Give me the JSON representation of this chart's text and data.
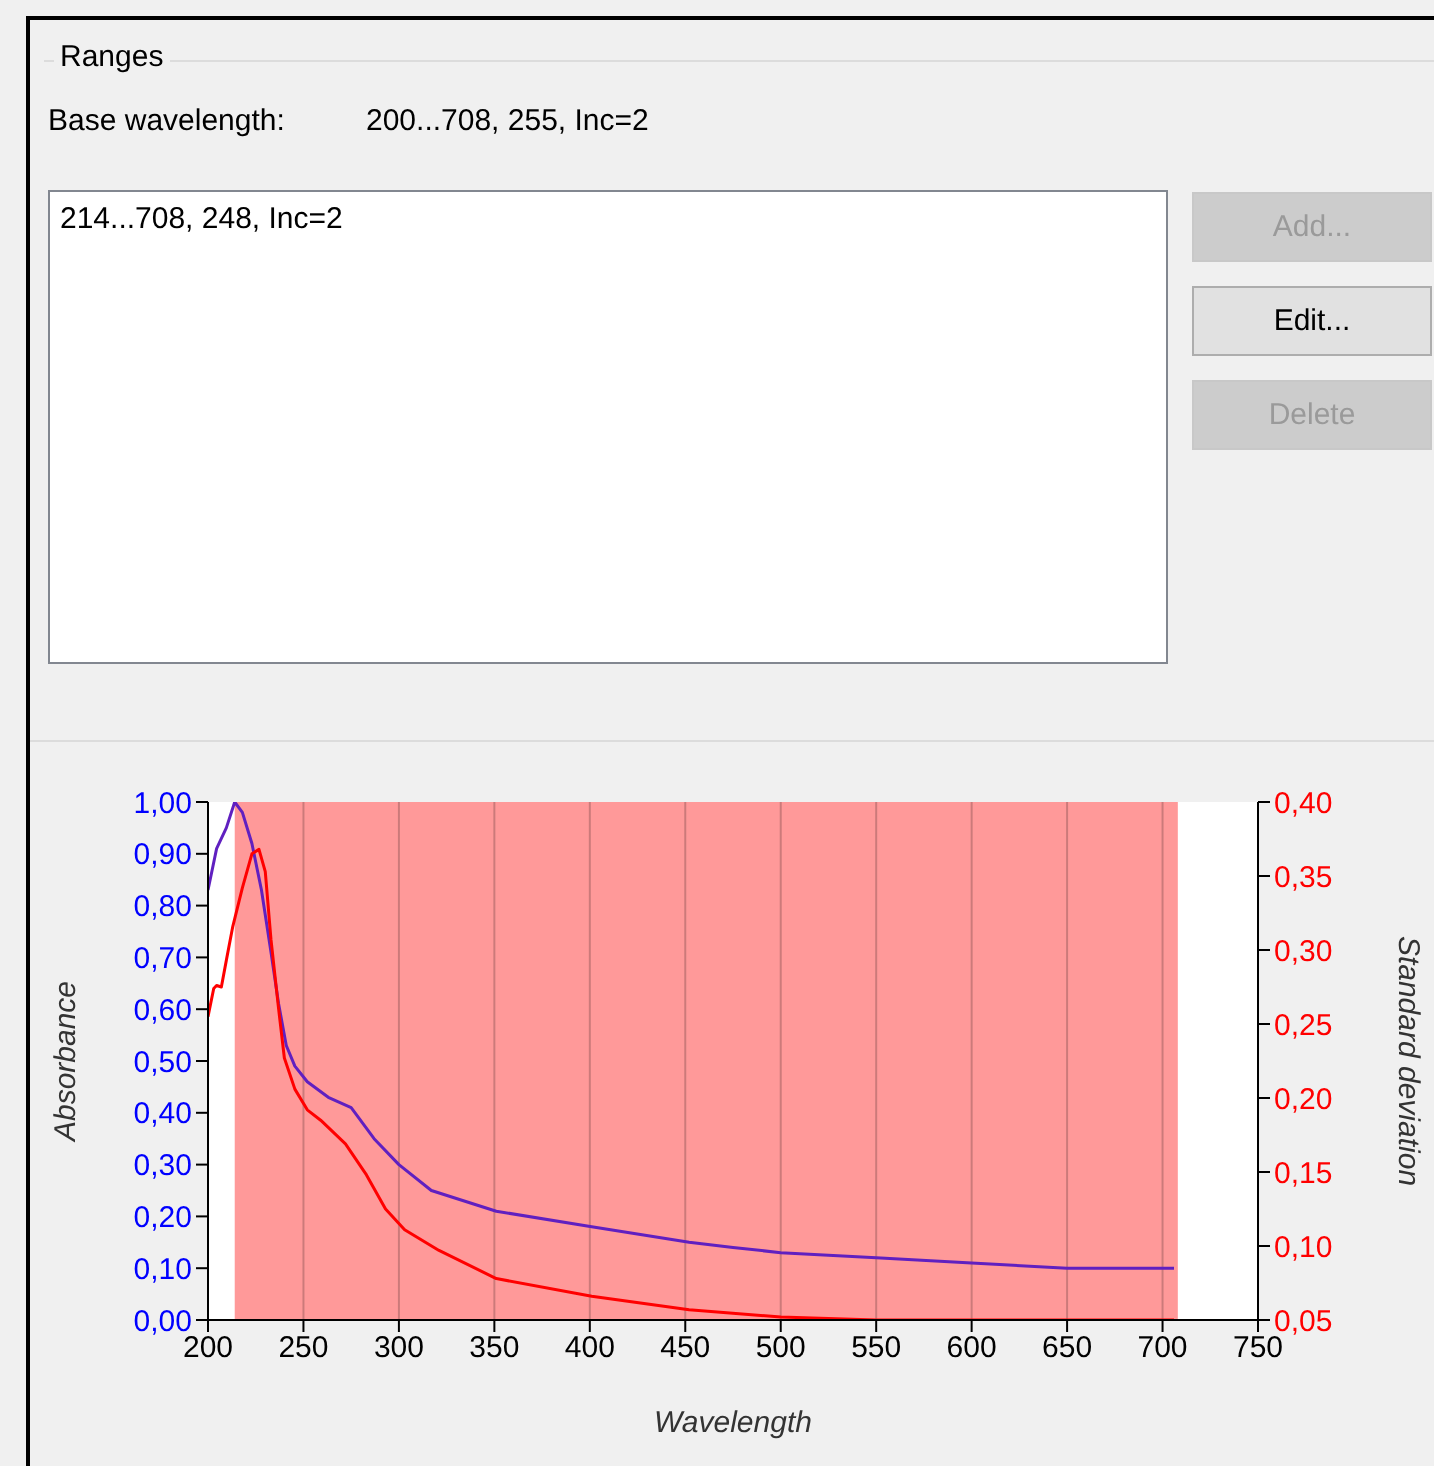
{
  "chart_data": {
    "type": "line",
    "title": "Ranges",
    "annotations": [
      "Base wavelength:",
      "200...708, 255, Inc=2",
      "214...708, 248, Inc=2",
      "Add...",
      "Edit...",
      "Delete"
    ],
    "xlabel": "Wavelength",
    "ylabel": "Absorbance",
    "y2label": "Standard deviation",
    "xlim": [
      200,
      750
    ],
    "xticks": [
      200,
      250,
      300,
      350,
      400,
      450,
      500,
      550,
      600,
      650,
      700,
      750
    ],
    "ylim": [
      0,
      1
    ],
    "yticks": [
      {
        "value": 0,
        "label": "0,00"
      },
      {
        "value": 0.1,
        "label": "0,10"
      },
      {
        "value": 0.2,
        "label": "0,20"
      },
      {
        "value": 0.3,
        "label": "0,30"
      },
      {
        "value": 0.4,
        "label": "0,40"
      },
      {
        "value": 0.5,
        "label": "0,50"
      },
      {
        "value": 0.6,
        "label": "0,60"
      },
      {
        "value": 0.7,
        "label": "0,70"
      },
      {
        "value": 0.8,
        "label": "0,80"
      },
      {
        "value": 0.9,
        "label": "0,90"
      },
      {
        "value": 1,
        "label": "1,00"
      }
    ],
    "y2lim": [
      0.05,
      0.4
    ],
    "y2ticks": [
      {
        "value": 0.05,
        "label": "0,05"
      },
      {
        "value": 0.1,
        "label": "0,10"
      },
      {
        "value": 0.15,
        "label": "0,15"
      },
      {
        "value": 0.2,
        "label": "0,20"
      },
      {
        "value": 0.25,
        "label": "0,25"
      },
      {
        "value": 0.3,
        "label": "0,30"
      },
      {
        "value": 0.35,
        "label": "0,35"
      },
      {
        "value": 0.4,
        "label": "0,40"
      }
    ],
    "grid": "x",
    "marker": "none",
    "bands": [
      {
        "axis": "x",
        "from": 214,
        "to": 708,
        "color": "#ff9999"
      }
    ],
    "series": [
      {
        "color": "#6020c0",
        "x": [
          200,
          204.5,
          209.6,
          214,
          218,
          223,
          228,
          233,
          237,
          241,
          245.5,
          252,
          263,
          275,
          287,
          300,
          317,
          351,
          401,
          452,
          475,
          500,
          550,
          600,
          650,
          706
        ],
        "values": [
          0.83,
          0.91,
          0.95,
          1.0,
          0.98,
          0.92,
          0.83,
          0.71,
          0.61,
          0.53,
          0.49,
          0.46,
          0.43,
          0.41,
          0.35,
          0.3,
          0.25,
          0.21,
          0.18,
          0.15,
          0.14,
          0.13,
          0.12,
          0.11,
          0.1,
          0.1
        ]
      },
      {
        "color": "#ff0000",
        "axis": "y2",
        "x": [
          200,
          203,
          204.5,
          207,
          209.6,
          213,
          218,
          223,
          226.7,
          230,
          233,
          237,
          240,
          245.5,
          252,
          259,
          272,
          283,
          293,
          303,
          321,
          351,
          401,
          452,
          500,
          550,
          600,
          650,
          706
        ],
        "values": [
          0.255,
          0.274,
          0.276,
          0.275,
          0.293,
          0.316,
          0.342,
          0.365,
          0.368,
          0.353,
          0.307,
          0.26,
          0.227,
          0.206,
          0.192,
          0.185,
          0.169,
          0.148,
          0.125,
          0.111,
          0.097,
          0.078,
          0.066,
          0.057,
          0.052,
          0.05,
          0.05,
          0.05,
          0.05
        ]
      }
    ]
  }
}
